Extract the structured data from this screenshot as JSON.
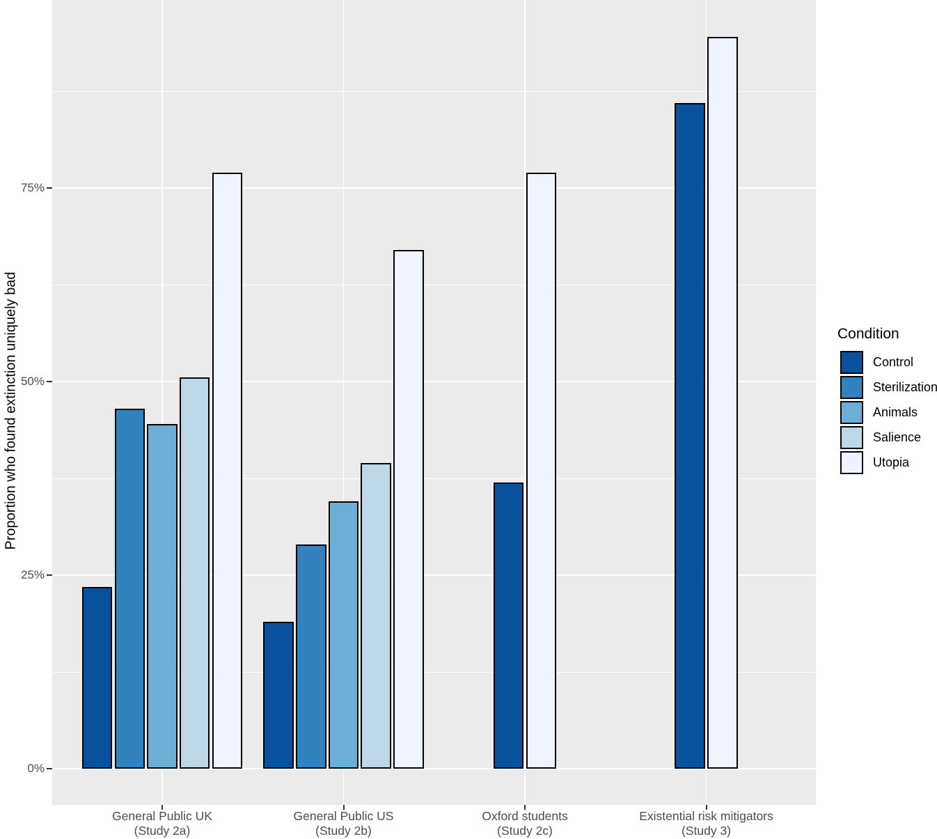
{
  "figure": {
    "background": "#FFFFFF",
    "panel_background": "#EBEBEB",
    "gridline_color": "#FFFFFF",
    "bar_border_color": "#000000",
    "axis_text_color": "#4D4D4D",
    "axis_title_color": "#000000",
    "tick_mark_color": "#333333"
  },
  "chart_data": {
    "type": "bar",
    "title": "",
    "xlabel": "",
    "ylabel": "Proportion who found extinction uniquely bad",
    "value_unit": "%",
    "ylim": [
      0,
      100
    ],
    "yticks": [
      {
        "value": 0,
        "label": "0%"
      },
      {
        "value": 25,
        "label": "25%"
      },
      {
        "value": 50,
        "label": "50%"
      },
      {
        "value": 75,
        "label": "75%"
      }
    ],
    "minor_gridlines": [
      12.5,
      37.5,
      62.5,
      87.5
    ],
    "grid": "white major and minor gridlines on gray panel",
    "legend_position": "right",
    "legend_title": "Condition",
    "categories": [
      "General Public UK\n(Study 2a)",
      "General Public US\n(Study 2b)",
      "Oxford students\n(Study 2c)",
      "Existential risk mitigators\n(Study 3)"
    ],
    "series": [
      {
        "name": "Control",
        "color": "#08519C",
        "values": [
          23.5,
          19,
          37,
          86
        ]
      },
      {
        "name": "Sterilization",
        "color": "#3182BD",
        "values": [
          46.5,
          29,
          null,
          null
        ]
      },
      {
        "name": "Animals",
        "color": "#6BAED6",
        "values": [
          44.5,
          34.5,
          null,
          null
        ]
      },
      {
        "name": "Salience",
        "color": "#BDD7E7",
        "values": [
          50.5,
          39.5,
          null,
          null
        ]
      },
      {
        "name": "Utopia",
        "color": "#EFF3FF",
        "values": [
          77,
          67,
          77,
          94.5
        ]
      }
    ]
  }
}
